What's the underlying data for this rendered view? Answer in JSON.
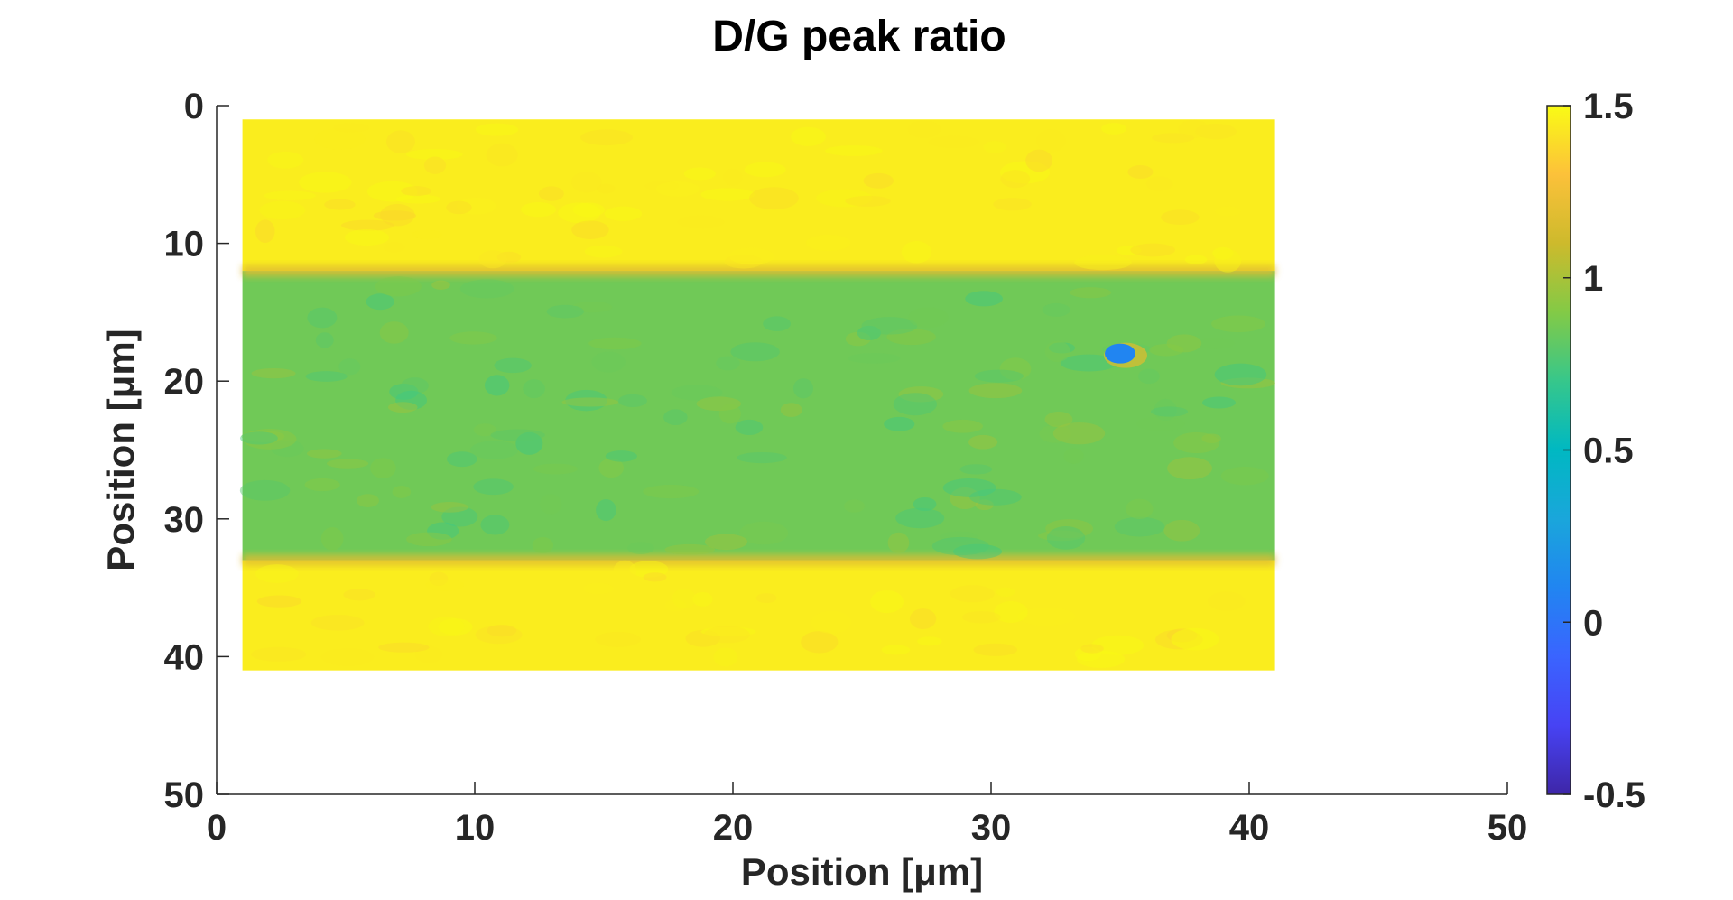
{
  "chart_data": {
    "type": "heatmap",
    "title": "D/G peak ratio",
    "xlabel": "Position [μm]",
    "ylabel": "Position [μm]",
    "xlim": [
      0,
      50
    ],
    "ylim": [
      0,
      50
    ],
    "y_reversed": true,
    "xticks": [
      0,
      10,
      20,
      30,
      40,
      50
    ],
    "yticks": [
      0,
      10,
      20,
      30,
      40,
      50
    ],
    "data_extent": {
      "x": [
        1,
        41
      ],
      "y": [
        1,
        41
      ]
    },
    "colorbar": {
      "lim": [
        -0.5,
        1.5
      ],
      "ticks": [
        "-0.5",
        "0",
        "0.5",
        "1",
        "1.5"
      ],
      "colormap": "parula"
    },
    "regions": [
      {
        "name": "upper band",
        "y": [
          1,
          12
        ],
        "value": 1.45
      },
      {
        "name": "middle band",
        "y": [
          12,
          33
        ],
        "value": 0.85
      },
      {
        "name": "lower band",
        "y": [
          33,
          41
        ],
        "value": 1.45
      }
    ],
    "features": [
      {
        "x": 35,
        "y": 18,
        "value": 0.1
      }
    ]
  }
}
